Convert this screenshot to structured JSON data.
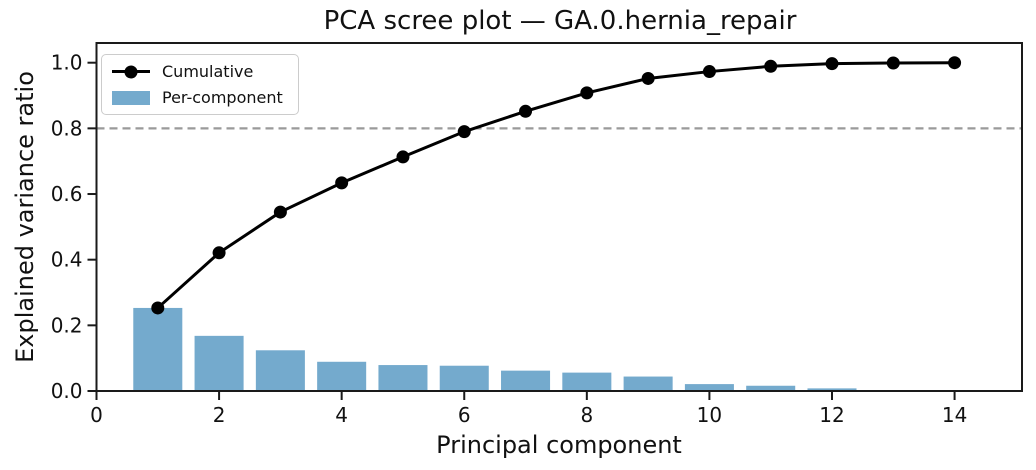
{
  "chart_data": {
    "type": "combo",
    "title": "PCA scree plot — GA.0.hernia_repair",
    "xlabel": "Principal component",
    "ylabel": "Explained variance ratio",
    "x": [
      1,
      2,
      3,
      4,
      5,
      6,
      7,
      8,
      9,
      10,
      11,
      12,
      13,
      14
    ],
    "series": [
      {
        "name": "Cumulative",
        "type": "line",
        "marker": "circle",
        "values": [
          0.253,
          0.421,
          0.545,
          0.634,
          0.713,
          0.79,
          0.852,
          0.908,
          0.952,
          0.973,
          0.989,
          0.997,
          0.999,
          1.0
        ]
      },
      {
        "name": "Per-component",
        "type": "bar",
        "values": [
          0.253,
          0.168,
          0.124,
          0.089,
          0.079,
          0.077,
          0.062,
          0.056,
          0.044,
          0.021,
          0.016,
          0.008,
          0.002,
          0.001
        ]
      }
    ],
    "threshold_line": {
      "y": 0.8,
      "style": "dashed",
      "color": "#9a9a9a"
    },
    "xticks": [
      0,
      2,
      4,
      6,
      8,
      10,
      12,
      14
    ],
    "yticks": [
      0.0,
      0.2,
      0.4,
      0.6,
      0.8,
      1.0
    ],
    "ytick_labels": [
      "0.0",
      "0.2",
      "0.4",
      "0.6",
      "0.8",
      "1.0"
    ],
    "xlim": [
      0,
      15.1
    ],
    "ylim": [
      0,
      1.06
    ],
    "grid": false,
    "legend_position": "upper left",
    "bar_width": 0.8,
    "colors": {
      "bar": "#74aacd",
      "line": "#000000",
      "axis": "#1a1a1a",
      "text": "#111111"
    }
  }
}
